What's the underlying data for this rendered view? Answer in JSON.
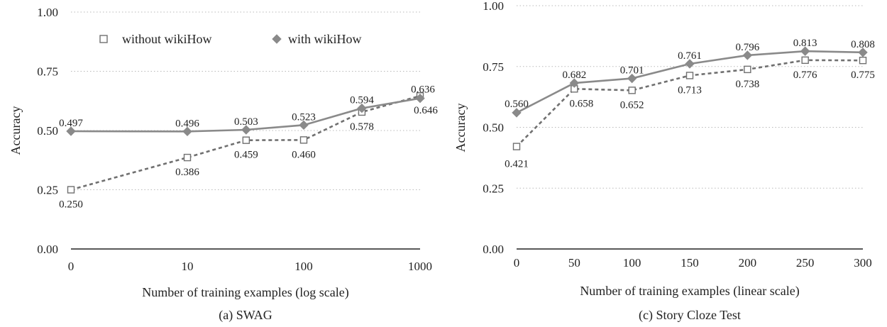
{
  "chart_data": [
    {
      "type": "line",
      "caption": "(a) SWAG",
      "xlabel": "Number of training examples (log scale)",
      "ylabel": "Accuracy",
      "x_scale": "log",
      "xticks": [
        "0",
        "10",
        "100",
        "1000"
      ],
      "yticks": [
        "0.00",
        "0.25",
        "0.50",
        "0.75",
        "1.00"
      ],
      "ylim": [
        0,
        1
      ],
      "grid": "horizontal dotted",
      "legend": "top-left",
      "x": [
        0,
        10,
        32,
        100,
        316,
        1000
      ],
      "series": [
        {
          "name": "without wikiHow",
          "marker": "open-square",
          "line": "dashed",
          "color": "#707070",
          "values": [
            0.25,
            0.386,
            0.459,
            0.46,
            0.578,
            0.646
          ],
          "labels": [
            "0.250",
            "0.386",
            "0.459",
            "0.460",
            "0.578",
            "0.646"
          ]
        },
        {
          "name": "with wikiHow",
          "marker": "filled-diamond",
          "line": "solid",
          "color": "#8a8a8a",
          "values": [
            0.497,
            0.496,
            0.503,
            0.523,
            0.594,
            0.636
          ],
          "labels": [
            "0.497",
            "0.496",
            "0.503",
            "0.523",
            "0.594",
            "0.636"
          ]
        }
      ]
    },
    {
      "type": "line",
      "caption": "(c) Story Cloze Test",
      "xlabel": "Number of training examples (linear scale)",
      "ylabel": "Accuracy",
      "x_scale": "linear",
      "xticks": [
        "0",
        "50",
        "100",
        "150",
        "200",
        "250",
        "300"
      ],
      "yticks": [
        "0.00",
        "0.25",
        "0.50",
        "0.75",
        "1.00"
      ],
      "ylim": [
        0,
        1
      ],
      "xlim": [
        0,
        300
      ],
      "grid": "horizontal dotted",
      "x": [
        0,
        50,
        100,
        150,
        200,
        250,
        300
      ],
      "series": [
        {
          "name": "without wikiHow",
          "marker": "open-square",
          "line": "dashed",
          "color": "#707070",
          "values": [
            0.421,
            0.658,
            0.652,
            0.713,
            0.738,
            0.776,
            0.775
          ],
          "labels": [
            "0.421",
            "0.658",
            "0.652",
            "0.713",
            "0.738",
            "0.776",
            "0.775"
          ]
        },
        {
          "name": "with wikiHow",
          "marker": "filled-diamond",
          "line": "solid",
          "color": "#8a8a8a",
          "values": [
            0.56,
            0.682,
            0.701,
            0.761,
            0.796,
            0.813,
            0.808
          ],
          "labels": [
            "0.560",
            "0.682",
            "0.701",
            "0.761",
            "0.796",
            "0.813",
            "0.808"
          ]
        }
      ]
    }
  ]
}
